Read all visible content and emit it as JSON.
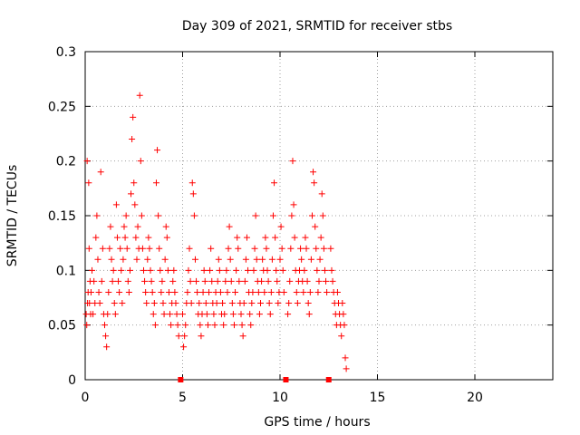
{
  "chart_data": {
    "type": "scatter",
    "title": "Day 309 of 2021, SRMTID for receiver stbs",
    "xlabel": "GPS time / hours",
    "ylabel": "SRMTID / TECUs",
    "xlim": [
      0,
      24
    ],
    "ylim": [
      0,
      0.3
    ],
    "x_ticks": [
      0,
      5,
      10,
      15,
      20
    ],
    "x_tick_labels": [
      "0",
      "5",
      "10",
      "15",
      "20"
    ],
    "y_ticks": [
      0,
      0.05,
      0.1,
      0.15,
      0.2,
      0.25,
      0.3
    ],
    "y_tick_labels": [
      "0",
      "0.05",
      "0.1",
      "0.15",
      "0.2",
      "0.25",
      "0.3"
    ],
    "grid": true,
    "marker": "+",
    "color": "#ff0000",
    "gap_markers_x": [
      4.9,
      10.3,
      12.5
    ],
    "series": [
      {
        "x": [
          0.05,
          0.08,
          0.1,
          0.12,
          0.15,
          0.18,
          0.2,
          0.22,
          0.25,
          0.28,
          0.3,
          0.35,
          0.4,
          0.45,
          0.5,
          0.55,
          0.6,
          0.65,
          0.7,
          0.75,
          0.8,
          0.85,
          0.9,
          0.95,
          1.0,
          1.05,
          1.1,
          1.15,
          1.2,
          1.25,
          1.3,
          1.35,
          1.4,
          1.45,
          1.5,
          1.55,
          1.6,
          1.65,
          1.7,
          1.75,
          1.8,
          1.85,
          1.9,
          1.95,
          2.0,
          2.05,
          2.1,
          2.15,
          2.2,
          2.25,
          2.3,
          2.35,
          2.4,
          2.45,
          2.5,
          2.55,
          2.6,
          2.65,
          2.7,
          2.75,
          2.8,
          2.85,
          2.9,
          2.95,
          3.0,
          3.05,
          3.1,
          3.15,
          3.2,
          3.25,
          3.3,
          3.35,
          3.4,
          3.45,
          3.5,
          3.55,
          3.6,
          3.65,
          3.7,
          3.75,
          3.8,
          3.85,
          3.9,
          3.95,
          4.0,
          4.05,
          4.1,
          4.15,
          4.2,
          4.25,
          4.3,
          4.35,
          4.4,
          4.45,
          4.5,
          4.55,
          4.6,
          4.65,
          4.7,
          4.75,
          4.8,
          5.0,
          5.05,
          5.1,
          5.15,
          5.2,
          5.25,
          5.3,
          5.35,
          5.4,
          5.45,
          5.5,
          5.55,
          5.6,
          5.65,
          5.7,
          5.75,
          5.8,
          5.85,
          5.9,
          5.95,
          6.0,
          6.05,
          6.1,
          6.15,
          6.2,
          6.25,
          6.3,
          6.35,
          6.4,
          6.45,
          6.5,
          6.55,
          6.6,
          6.65,
          6.7,
          6.75,
          6.8,
          6.85,
          6.9,
          6.95,
          7.0,
          7.05,
          7.1,
          7.15,
          7.2,
          7.25,
          7.3,
          7.35,
          7.4,
          7.45,
          7.5,
          7.55,
          7.6,
          7.65,
          7.7,
          7.75,
          7.8,
          7.85,
          7.9,
          7.95,
          8.0,
          8.05,
          8.1,
          8.15,
          8.2,
          8.25,
          8.3,
          8.35,
          8.4,
          8.45,
          8.5,
          8.55,
          8.6,
          8.65,
          8.7,
          8.75,
          8.8,
          8.85,
          8.9,
          8.95,
          9.0,
          9.05,
          9.1,
          9.15,
          9.2,
          9.25,
          9.3,
          9.35,
          9.4,
          9.45,
          9.5,
          9.55,
          9.6,
          9.65,
          9.7,
          9.75,
          9.8,
          9.85,
          9.9,
          9.95,
          10.0,
          10.05,
          10.1,
          10.15,
          10.2,
          10.4,
          10.45,
          10.5,
          10.55,
          10.6,
          10.65,
          10.7,
          10.75,
          10.8,
          10.85,
          10.9,
          10.95,
          11.0,
          11.05,
          11.1,
          11.15,
          11.2,
          11.25,
          11.3,
          11.35,
          11.4,
          11.45,
          11.5,
          11.55,
          11.6,
          11.65,
          11.7,
          11.75,
          11.8,
          11.85,
          11.9,
          11.95,
          12.0,
          12.05,
          12.1,
          12.15,
          12.2,
          12.25,
          12.3,
          12.35,
          12.4,
          12.6,
          12.65,
          12.7,
          12.75,
          12.8,
          12.85,
          12.9,
          12.95,
          13.0,
          13.05,
          13.1,
          13.15,
          13.2,
          13.25,
          13.3,
          13.35,
          13.4
        ],
        "y": [
          0.06,
          0.05,
          0.2,
          0.07,
          0.08,
          0.18,
          0.12,
          0.07,
          0.09,
          0.06,
          0.08,
          0.1,
          0.06,
          0.09,
          0.07,
          0.13,
          0.15,
          0.11,
          0.08,
          0.07,
          0.19,
          0.09,
          0.12,
          0.06,
          0.05,
          0.04,
          0.03,
          0.06,
          0.08,
          0.12,
          0.14,
          0.11,
          0.09,
          0.1,
          0.07,
          0.06,
          0.16,
          0.13,
          0.09,
          0.08,
          0.12,
          0.1,
          0.07,
          0.11,
          0.14,
          0.13,
          0.15,
          0.12,
          0.09,
          0.08,
          0.1,
          0.17,
          0.22,
          0.24,
          0.18,
          0.16,
          0.13,
          0.11,
          0.14,
          0.12,
          0.26,
          0.2,
          0.15,
          0.12,
          0.1,
          0.09,
          0.08,
          0.07,
          0.11,
          0.13,
          0.12,
          0.1,
          0.09,
          0.08,
          0.06,
          0.07,
          0.05,
          0.18,
          0.21,
          0.15,
          0.12,
          0.1,
          0.08,
          0.09,
          0.07,
          0.06,
          0.11,
          0.14,
          0.13,
          0.1,
          0.08,
          0.06,
          0.05,
          0.07,
          0.09,
          0.1,
          0.08,
          0.07,
          0.06,
          0.05,
          0.04,
          0.06,
          0.03,
          0.04,
          0.05,
          0.07,
          0.08,
          0.1,
          0.12,
          0.09,
          0.07,
          0.18,
          0.17,
          0.15,
          0.11,
          0.09,
          0.08,
          0.06,
          0.07,
          0.05,
          0.04,
          0.06,
          0.08,
          0.1,
          0.09,
          0.07,
          0.06,
          0.05,
          0.08,
          0.1,
          0.12,
          0.09,
          0.07,
          0.06,
          0.05,
          0.08,
          0.07,
          0.09,
          0.11,
          0.1,
          0.08,
          0.06,
          0.07,
          0.05,
          0.06,
          0.09,
          0.1,
          0.08,
          0.12,
          0.14,
          0.11,
          0.09,
          0.07,
          0.06,
          0.05,
          0.08,
          0.1,
          0.13,
          0.12,
          0.09,
          0.07,
          0.06,
          0.05,
          0.04,
          0.07,
          0.09,
          0.11,
          0.13,
          0.1,
          0.08,
          0.06,
          0.05,
          0.07,
          0.08,
          0.1,
          0.12,
          0.15,
          0.11,
          0.09,
          0.08,
          0.06,
          0.07,
          0.09,
          0.11,
          0.1,
          0.08,
          0.13,
          0.12,
          0.1,
          0.09,
          0.07,
          0.06,
          0.08,
          0.11,
          0.15,
          0.18,
          0.13,
          0.1,
          0.09,
          0.07,
          0.08,
          0.11,
          0.14,
          0.12,
          0.1,
          0.08,
          0.06,
          0.07,
          0.09,
          0.12,
          0.15,
          0.2,
          0.16,
          0.13,
          0.1,
          0.08,
          0.07,
          0.09,
          0.1,
          0.12,
          0.11,
          0.09,
          0.08,
          0.1,
          0.13,
          0.12,
          0.09,
          0.07,
          0.06,
          0.08,
          0.11,
          0.15,
          0.19,
          0.18,
          0.14,
          0.12,
          0.1,
          0.08,
          0.09,
          0.11,
          0.13,
          0.17,
          0.15,
          0.12,
          0.1,
          0.09,
          0.08,
          0.12,
          0.1,
          0.09,
          0.08,
          0.07,
          0.06,
          0.05,
          0.08,
          0.07,
          0.06,
          0.05,
          0.04,
          0.07,
          0.06,
          0.05,
          0.02,
          0.01
        ]
      }
    ]
  }
}
